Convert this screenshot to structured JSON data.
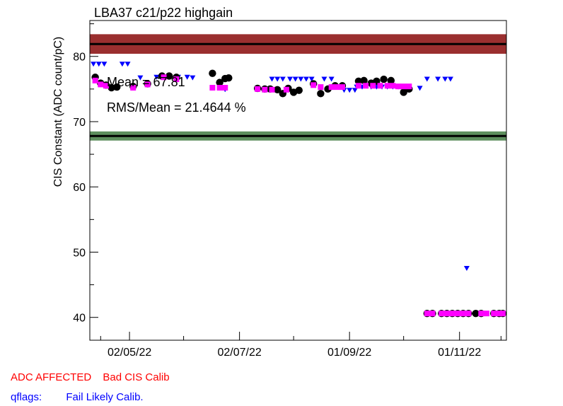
{
  "chart_data": {
    "type": "scatter",
    "title": "LBA37 c21/p22 highgain",
    "ylabel": "CIS Constant (ADC count/pC)",
    "xlabel": "",
    "ylim": [
      36.5,
      85.5
    ],
    "xlim": [
      "2022-04-10",
      "2022-11-27"
    ],
    "x_ticks": [
      "02/05/22",
      "02/07/22",
      "01/09/22",
      "01/11/22"
    ],
    "x_tick_dates": [
      "2022-05-02",
      "2022-07-02",
      "2022-09-01",
      "2022-11-01"
    ],
    "y_ticks": [
      40,
      50,
      60,
      70,
      80
    ],
    "grid": false,
    "annotations": {
      "mean": "Mean = 67.81",
      "rms": "RMS/Mean = 21.4644 %"
    },
    "bands": [
      {
        "name": "upper",
        "center": 81.9,
        "low": 80.4,
        "high": 83.4,
        "color": "#9a2f2f",
        "line_color": "#000000"
      },
      {
        "name": "lower",
        "center": 67.8,
        "low": 67.1,
        "high": 68.5,
        "color": "#5e8f5e",
        "line_color": "#000000"
      }
    ],
    "series": [
      {
        "marker": "triangle-down",
        "color": "#0000ff",
        "points": [
          [
            "2022-04-12",
            78.8
          ],
          [
            "2022-04-15",
            78.8
          ],
          [
            "2022-04-18",
            78.8
          ],
          [
            "2022-04-28",
            78.8
          ],
          [
            "2022-05-01",
            78.8
          ],
          [
            "2022-05-08",
            76.7
          ],
          [
            "2022-05-17",
            76.8
          ],
          [
            "2022-05-29",
            76.8
          ],
          [
            "2022-06-03",
            76.8
          ],
          [
            "2022-06-06",
            76.7
          ],
          [
            "2022-06-24",
            74.9
          ],
          [
            "2022-07-20",
            76.5
          ],
          [
            "2022-07-23",
            76.5
          ],
          [
            "2022-07-26",
            76.5
          ],
          [
            "2022-07-30",
            76.5
          ],
          [
            "2022-08-02",
            76.5
          ],
          [
            "2022-08-05",
            76.5
          ],
          [
            "2022-08-08",
            76.5
          ],
          [
            "2022-08-11",
            76.5
          ],
          [
            "2022-08-18",
            76.5
          ],
          [
            "2022-08-22",
            76.5
          ],
          [
            "2022-08-29",
            74.8
          ],
          [
            "2022-09-01",
            74.8
          ],
          [
            "2022-09-04",
            74.8
          ],
          [
            "2022-09-05",
            75.3
          ],
          [
            "2022-09-08",
            75.3
          ],
          [
            "2022-09-13",
            75.3
          ],
          [
            "2022-09-16",
            75.3
          ],
          [
            "2022-09-19",
            75.3
          ],
          [
            "2022-09-22",
            75.3
          ],
          [
            "2022-09-25",
            75.3
          ],
          [
            "2022-09-28",
            75.3
          ],
          [
            "2022-10-10",
            75.1
          ],
          [
            "2022-10-14",
            76.5
          ],
          [
            "2022-10-20",
            76.5
          ],
          [
            "2022-10-24",
            76.5
          ],
          [
            "2022-10-27",
            76.5
          ],
          [
            "2022-11-05",
            47.5
          ]
        ]
      },
      {
        "marker": "circle",
        "color": "#000000",
        "points": [
          [
            "2022-04-13",
            76.8
          ],
          [
            "2022-04-16",
            75.9
          ],
          [
            "2022-04-19",
            75.6
          ],
          [
            "2022-04-22",
            75.2
          ],
          [
            "2022-04-25",
            75.3
          ],
          [
            "2022-05-04",
            75.4
          ],
          [
            "2022-05-12",
            75.8
          ],
          [
            "2022-05-20",
            77.0
          ],
          [
            "2022-05-24",
            77.0
          ],
          [
            "2022-05-28",
            76.8
          ],
          [
            "2022-06-17",
            77.4
          ],
          [
            "2022-06-21",
            76.0
          ],
          [
            "2022-06-24",
            76.6
          ],
          [
            "2022-06-26",
            76.7
          ],
          [
            "2022-07-12",
            75.1
          ],
          [
            "2022-07-16",
            75.0
          ],
          [
            "2022-07-19",
            75.0
          ],
          [
            "2022-07-23",
            74.9
          ],
          [
            "2022-07-26",
            74.3
          ],
          [
            "2022-07-29",
            75.1
          ],
          [
            "2022-08-01",
            74.5
          ],
          [
            "2022-08-04",
            74.8
          ],
          [
            "2022-08-12",
            75.8
          ],
          [
            "2022-08-16",
            74.3
          ],
          [
            "2022-08-20",
            75.0
          ],
          [
            "2022-08-24",
            75.5
          ],
          [
            "2022-08-28",
            75.5
          ],
          [
            "2022-09-06",
            76.2
          ],
          [
            "2022-09-09",
            76.3
          ],
          [
            "2022-09-13",
            75.9
          ],
          [
            "2022-09-16",
            76.2
          ],
          [
            "2022-09-20",
            76.5
          ],
          [
            "2022-09-24",
            76.3
          ],
          [
            "2022-10-01",
            74.5
          ],
          [
            "2022-10-04",
            75.0
          ],
          [
            "2022-10-14",
            40.6
          ],
          [
            "2022-10-17",
            40.6
          ],
          [
            "2022-10-22",
            40.6
          ],
          [
            "2022-10-25",
            40.6
          ],
          [
            "2022-10-28",
            40.6
          ],
          [
            "2022-10-31",
            40.6
          ],
          [
            "2022-11-03",
            40.6
          ],
          [
            "2022-11-06",
            40.6
          ],
          [
            "2022-11-10",
            40.6
          ],
          [
            "2022-11-13",
            40.6
          ],
          [
            "2022-11-20",
            40.6
          ],
          [
            "2022-11-23",
            40.6
          ],
          [
            "2022-11-25",
            40.6
          ]
        ]
      },
      {
        "marker": "square",
        "color": "#ff00ff",
        "points": [
          [
            "2022-04-13",
            76.3
          ],
          [
            "2022-04-16",
            75.7
          ],
          [
            "2022-04-19",
            75.5
          ],
          [
            "2022-05-04",
            75.2
          ],
          [
            "2022-05-12",
            75.7
          ],
          [
            "2022-05-21",
            76.8
          ],
          [
            "2022-05-28",
            76.5
          ],
          [
            "2022-06-17",
            75.2
          ],
          [
            "2022-06-21",
            75.2
          ],
          [
            "2022-06-24",
            75.2
          ],
          [
            "2022-07-12",
            75.0
          ],
          [
            "2022-07-16",
            74.9
          ],
          [
            "2022-07-20",
            74.9
          ],
          [
            "2022-07-28",
            74.9
          ],
          [
            "2022-08-12",
            75.6
          ],
          [
            "2022-08-16",
            75.3
          ],
          [
            "2022-08-22",
            75.3
          ],
          [
            "2022-08-25",
            75.3
          ],
          [
            "2022-08-28",
            75.3
          ],
          [
            "2022-09-06",
            75.5
          ],
          [
            "2022-09-10",
            75.5
          ],
          [
            "2022-09-14",
            75.5
          ],
          [
            "2022-09-18",
            75.5
          ],
          [
            "2022-09-22",
            75.5
          ],
          [
            "2022-09-25",
            75.5
          ],
          [
            "2022-09-28",
            75.4
          ],
          [
            "2022-10-01",
            75.4
          ],
          [
            "2022-10-04",
            75.4
          ],
          [
            "2022-10-14",
            40.6
          ],
          [
            "2022-10-17",
            40.6
          ],
          [
            "2022-10-22",
            40.6
          ],
          [
            "2022-10-25",
            40.6
          ],
          [
            "2022-10-28",
            40.6
          ],
          [
            "2022-10-31",
            40.6
          ],
          [
            "2022-11-03",
            40.6
          ],
          [
            "2022-11-06",
            40.6
          ],
          [
            "2022-11-13",
            40.6
          ],
          [
            "2022-11-16",
            40.6
          ],
          [
            "2022-11-20",
            40.6
          ],
          [
            "2022-11-23",
            40.6
          ],
          [
            "2022-11-25",
            40.6
          ]
        ]
      }
    ]
  },
  "legend": {
    "row1": [
      {
        "text": "ADC AFFECTED",
        "color": "#ff0000"
      },
      {
        "text": "Bad CIS Calib",
        "color": "#ff0000"
      }
    ],
    "row2": [
      {
        "text": "qflags:",
        "color": "#0000ff"
      },
      {
        "text": "Fail Likely Calib.",
        "color": "#0000ff"
      }
    ]
  }
}
